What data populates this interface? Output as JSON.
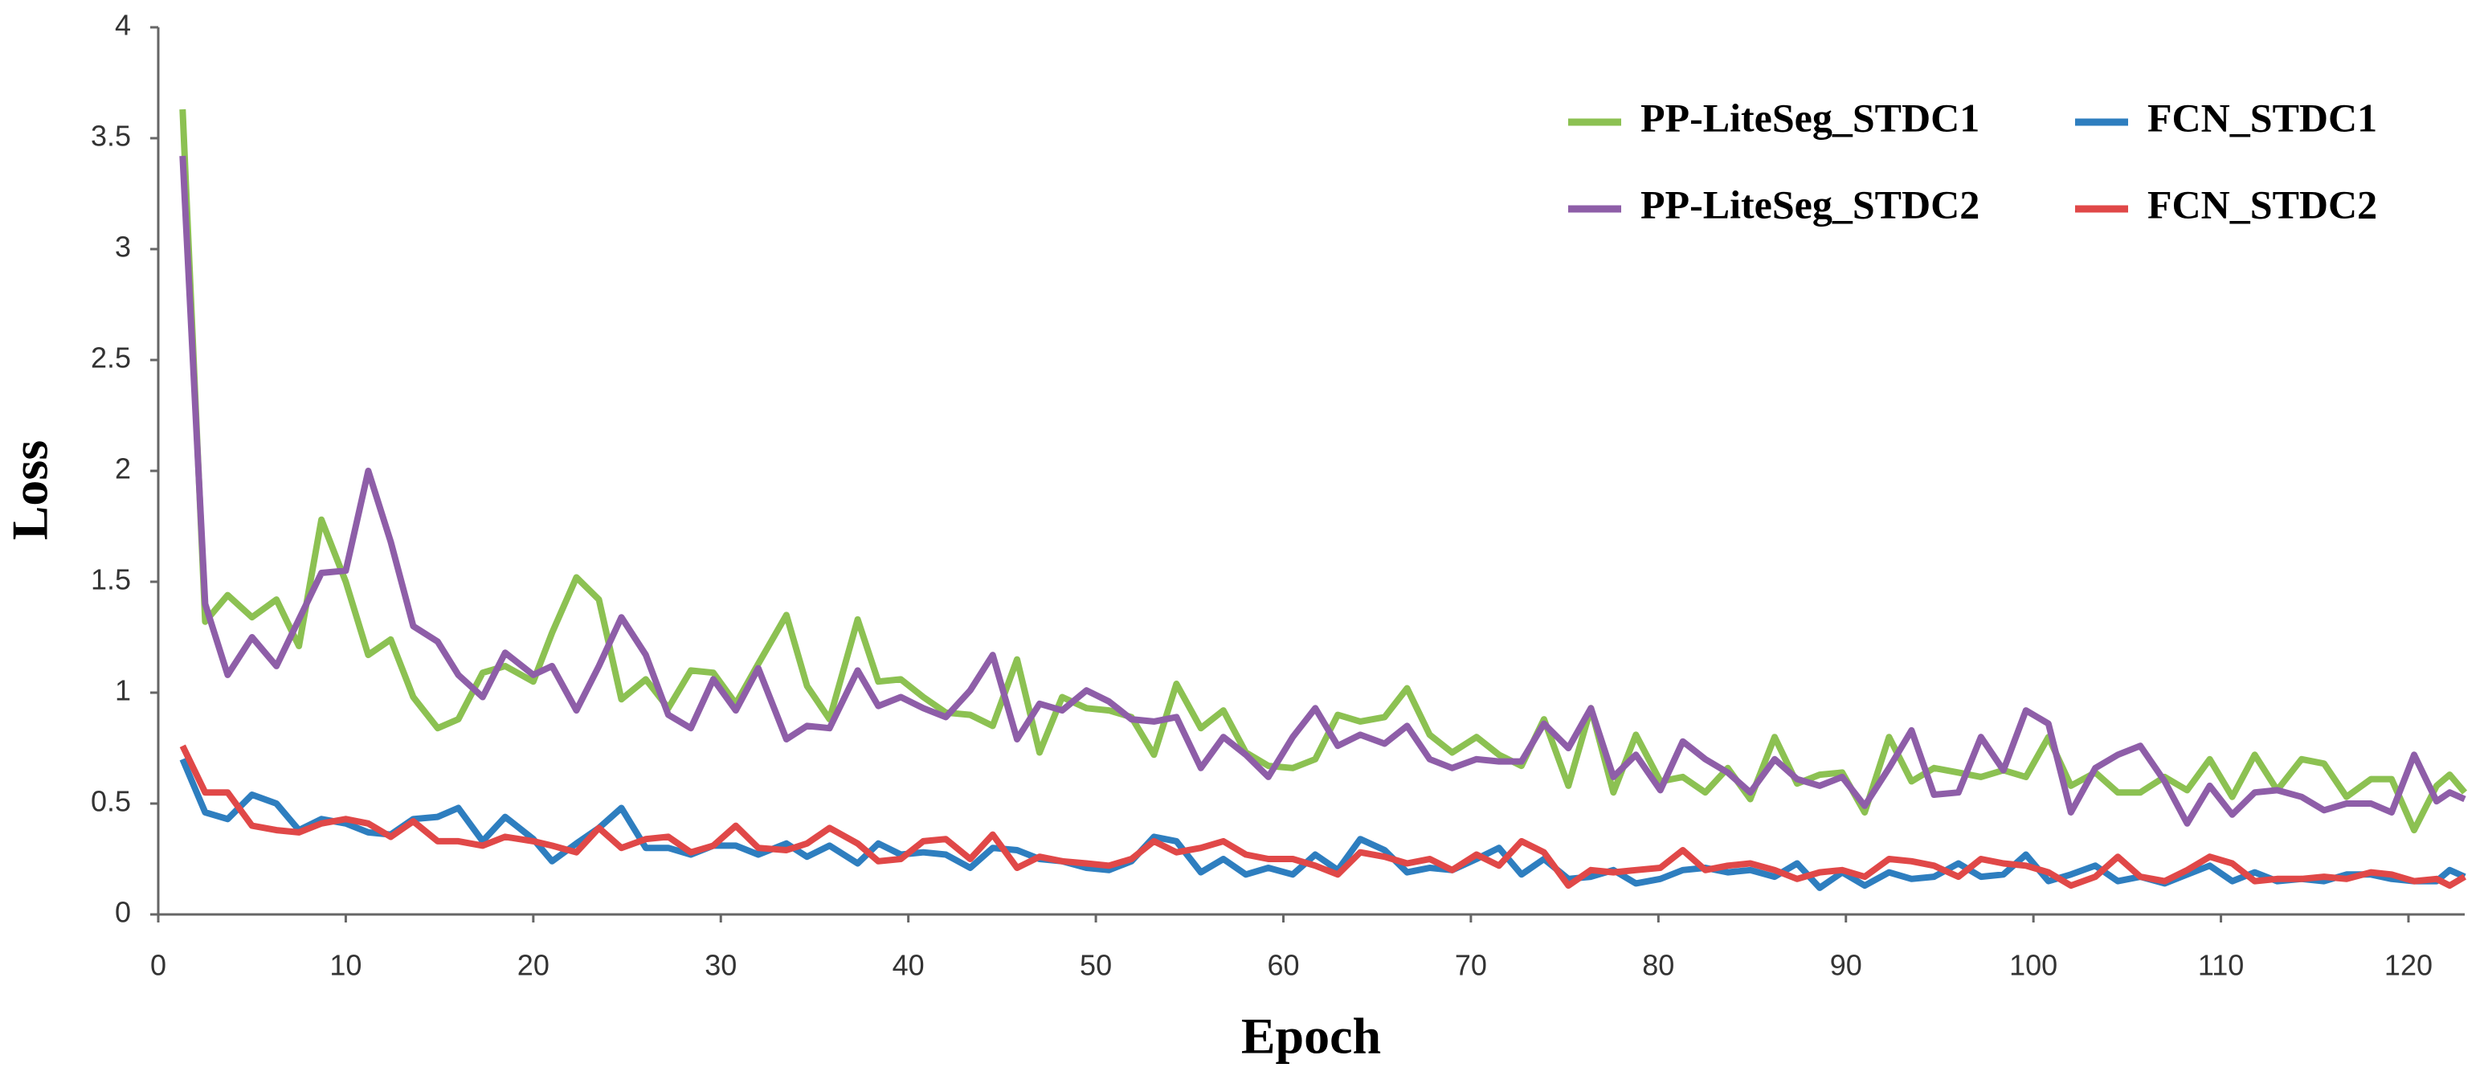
{
  "chart_data": {
    "type": "line",
    "xlabel": "Epoch",
    "ylabel": "Loss",
    "x": [
      1.3,
      2.5,
      3.7,
      5,
      6.3,
      7.5,
      8.7,
      10,
      11.2,
      12.4,
      13.6,
      14.9,
      16,
      17.3,
      18.5,
      20,
      21,
      22.3,
      23.5,
      24.7,
      26,
      27.2,
      28.4,
      29.6,
      30.8,
      32,
      33.5,
      34.6,
      35.8,
      37.3,
      38.4,
      39.6,
      40.8,
      42,
      43.3,
      44.5,
      45.8,
      47,
      48.2,
      49.5,
      50.7,
      51.9,
      53.1,
      54.3,
      55.6,
      56.8,
      58,
      59.2,
      60.5,
      61.7,
      62.9,
      64.1,
      65.4,
      66.6,
      67.8,
      69,
      70.3,
      71.5,
      72.7,
      73.9,
      75.2,
      76.4,
      77.6,
      78.8,
      80.1,
      81.3,
      82.5,
      83.7,
      84.9,
      86.2,
      87.4,
      88.6,
      89.8,
      91,
      92.3,
      93.5,
      94.7,
      96,
      97.2,
      98.4,
      99.6,
      100.8,
      102,
      103.3,
      104.5,
      105.7,
      107,
      108.2,
      109.4,
      110.6,
      111.8,
      113,
      114.3,
      115.5,
      116.7,
      118,
      119.1,
      120.3,
      121.5,
      122.2,
      123
    ],
    "series": [
      {
        "name": "PP-LiteSeg_STDC1",
        "color": "#8cc152",
        "values": [
          3.63,
          1.32,
          1.44,
          1.34,
          1.42,
          1.21,
          1.78,
          1.5,
          1.17,
          1.24,
          0.98,
          0.84,
          0.88,
          1.09,
          1.12,
          1.05,
          1.27,
          1.52,
          1.42,
          0.97,
          1.06,
          0.93,
          1.1,
          1.09,
          0.95,
          1.13,
          1.35,
          1.03,
          0.88,
          1.33,
          1.05,
          1.06,
          0.98,
          0.91,
          0.9,
          0.85,
          1.15,
          0.73,
          0.98,
          0.93,
          0.92,
          0.89,
          0.72,
          1.04,
          0.84,
          0.92,
          0.73,
          0.67,
          0.66,
          0.7,
          0.9,
          0.87,
          0.89,
          1.02,
          0.81,
          0.73,
          0.8,
          0.72,
          0.67,
          0.88,
          0.58,
          0.93,
          0.55,
          0.81,
          0.6,
          0.62,
          0.55,
          0.66,
          0.52,
          0.8,
          0.59,
          0.63,
          0.64,
          0.46,
          0.8,
          0.6,
          0.66,
          0.64,
          0.62,
          0.65,
          0.62,
          0.8,
          0.58,
          0.64,
          0.55,
          0.55,
          0.62,
          0.56,
          0.7,
          0.53,
          0.72,
          0.56,
          0.7,
          0.68,
          0.53,
          0.61,
          0.61,
          0.38,
          0.58,
          0.63,
          0.55
        ]
      },
      {
        "name": "FCN_STDC1",
        "color": "#2e7ebf",
        "values": [
          0.7,
          0.46,
          0.43,
          0.54,
          0.5,
          0.38,
          0.43,
          0.41,
          0.37,
          0.36,
          0.43,
          0.44,
          0.48,
          0.33,
          0.44,
          0.34,
          0.24,
          0.32,
          0.39,
          0.48,
          0.3,
          0.3,
          0.27,
          0.31,
          0.31,
          0.27,
          0.32,
          0.26,
          0.31,
          0.23,
          0.32,
          0.27,
          0.28,
          0.27,
          0.21,
          0.3,
          0.29,
          0.25,
          0.24,
          0.21,
          0.2,
          0.24,
          0.35,
          0.33,
          0.19,
          0.25,
          0.18,
          0.21,
          0.18,
          0.27,
          0.2,
          0.34,
          0.29,
          0.19,
          0.21,
          0.2,
          0.25,
          0.3,
          0.18,
          0.25,
          0.16,
          0.17,
          0.2,
          0.14,
          0.16,
          0.2,
          0.21,
          0.19,
          0.2,
          0.17,
          0.23,
          0.12,
          0.19,
          0.13,
          0.19,
          0.16,
          0.17,
          0.23,
          0.17,
          0.18,
          0.27,
          0.15,
          0.18,
          0.22,
          0.15,
          0.17,
          0.14,
          0.18,
          0.22,
          0.15,
          0.19,
          0.15,
          0.16,
          0.15,
          0.18,
          0.18,
          0.16,
          0.15,
          0.15,
          0.2,
          0.17
        ]
      },
      {
        "name": "PP-LiteSeg_STDC2",
        "color": "#8e5ea8",
        "values": [
          3.42,
          1.4,
          1.08,
          1.25,
          1.12,
          1.33,
          1.54,
          1.55,
          2.0,
          1.68,
          1.3,
          1.23,
          1.08,
          0.98,
          1.18,
          1.08,
          1.12,
          0.92,
          1.12,
          1.34,
          1.17,
          0.9,
          0.84,
          1.06,
          0.92,
          1.11,
          0.79,
          0.85,
          0.84,
          1.1,
          0.94,
          0.98,
          0.93,
          0.89,
          1.01,
          1.17,
          0.79,
          0.95,
          0.92,
          1.01,
          0.96,
          0.88,
          0.87,
          0.89,
          0.66,
          0.8,
          0.72,
          0.62,
          0.8,
          0.93,
          0.76,
          0.81,
          0.77,
          0.85,
          0.7,
          0.66,
          0.7,
          0.69,
          0.69,
          0.86,
          0.75,
          0.93,
          0.62,
          0.72,
          0.56,
          0.78,
          0.7,
          0.64,
          0.55,
          0.7,
          0.61,
          0.58,
          0.62,
          0.49,
          0.66,
          0.83,
          0.54,
          0.55,
          0.8,
          0.65,
          0.92,
          0.86,
          0.46,
          0.66,
          0.72,
          0.76,
          0.6,
          0.41,
          0.58,
          0.45,
          0.55,
          0.56,
          0.53,
          0.47,
          0.5,
          0.5,
          0.46,
          0.72,
          0.51,
          0.55,
          0.52
        ]
      },
      {
        "name": "FCN_STDC2",
        "color": "#e04848",
        "values": [
          0.76,
          0.55,
          0.55,
          0.4,
          0.38,
          0.37,
          0.41,
          0.43,
          0.41,
          0.35,
          0.42,
          0.33,
          0.33,
          0.31,
          0.35,
          0.33,
          0.31,
          0.28,
          0.39,
          0.3,
          0.34,
          0.35,
          0.28,
          0.31,
          0.4,
          0.3,
          0.29,
          0.32,
          0.39,
          0.32,
          0.24,
          0.25,
          0.33,
          0.34,
          0.25,
          0.36,
          0.21,
          0.26,
          0.24,
          0.23,
          0.22,
          0.25,
          0.33,
          0.28,
          0.3,
          0.33,
          0.27,
          0.25,
          0.25,
          0.22,
          0.18,
          0.28,
          0.26,
          0.23,
          0.25,
          0.2,
          0.27,
          0.22,
          0.33,
          0.28,
          0.13,
          0.2,
          0.19,
          0.2,
          0.21,
          0.29,
          0.2,
          0.22,
          0.23,
          0.2,
          0.16,
          0.19,
          0.2,
          0.17,
          0.25,
          0.24,
          0.22,
          0.17,
          0.25,
          0.23,
          0.22,
          0.19,
          0.13,
          0.17,
          0.26,
          0.17,
          0.15,
          0.2,
          0.26,
          0.23,
          0.15,
          0.16,
          0.16,
          0.17,
          0.16,
          0.19,
          0.18,
          0.15,
          0.16,
          0.13,
          0.17
        ]
      }
    ],
    "xlim": [
      0,
      123
    ],
    "xticks": [
      0,
      10,
      20,
      30,
      40,
      50,
      60,
      70,
      80,
      90,
      100,
      110,
      120
    ],
    "ylim": [
      0,
      4
    ],
    "yticks": [
      0,
      0.5,
      1,
      1.5,
      2,
      2.5,
      3,
      3.5,
      4
    ],
    "grid": false,
    "legend": "upper right"
  }
}
